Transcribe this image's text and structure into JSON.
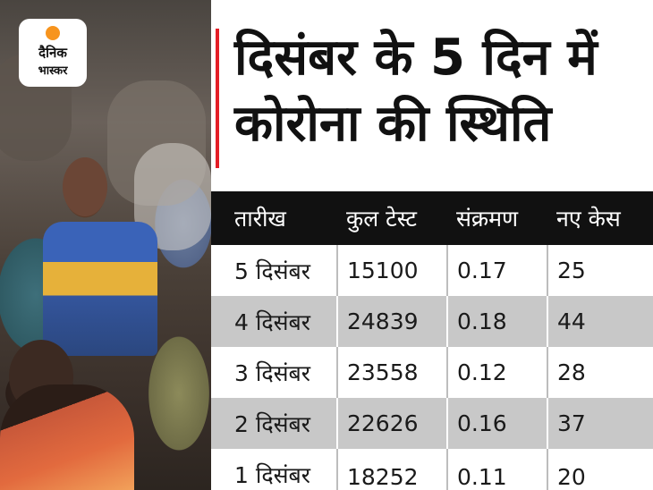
{
  "logo": {
    "line1": "दैनिक",
    "line2": "भास्कर"
  },
  "heading": {
    "line1": "दिसंबर के 5 दिन में",
    "line2": "कोरोना की स्थिति"
  },
  "colors": {
    "accent_red": "#e41e26",
    "header_bg": "#111111",
    "row_alt": "#c8c8c8",
    "logo_orange": "#f7941d"
  },
  "table": {
    "headers": [
      "तारीख",
      "कुल टेस्ट",
      "संक्रमण",
      "नए केस"
    ],
    "rows": [
      [
        "5 दिसंबर",
        "15100",
        "0.17",
        "25"
      ],
      [
        "4 दिसंबर",
        "24839",
        "0.18",
        "44"
      ],
      [
        "3 दिसंबर",
        "23558",
        "0.12",
        "28"
      ],
      [
        "2 दिसंबर",
        "22626",
        "0.16",
        "37"
      ],
      [
        "1 दिसंबर",
        "18252",
        "0.11",
        "20"
      ]
    ]
  }
}
